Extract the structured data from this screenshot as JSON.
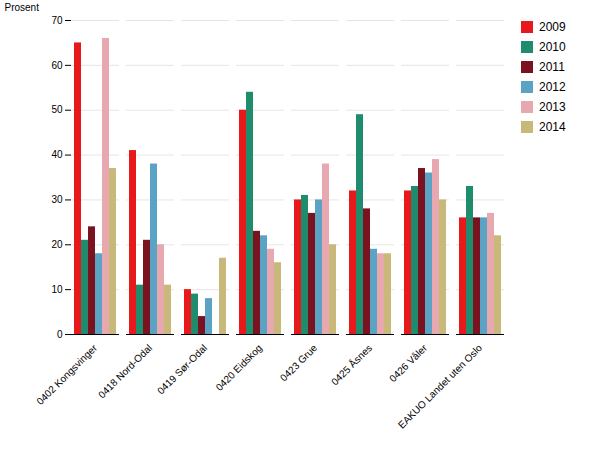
{
  "chart_data": {
    "type": "bar",
    "categories": [
      "0402 Kongsvinger",
      "0418 Nord-Odal",
      "0419 Sør-Odal",
      "0420 Eidskog",
      "0423 Grue",
      "0425 Åsnes",
      "0426 Våler",
      "EAKUO Landet uten Oslo"
    ],
    "series": [
      {
        "name": "2009",
        "color": "#E8191A",
        "values": [
          65,
          41,
          10,
          50,
          30,
          32,
          32,
          26
        ]
      },
      {
        "name": "2010",
        "color": "#1F8C6E",
        "values": [
          21,
          11,
          9,
          54,
          31,
          49,
          33,
          33
        ]
      },
      {
        "name": "2011",
        "color": "#7B1220",
        "values": [
          24,
          21,
          4,
          23,
          27,
          28,
          37,
          26
        ]
      },
      {
        "name": "2012",
        "color": "#5BA3C4",
        "values": [
          18,
          38,
          8,
          22,
          30,
          19,
          36,
          26
        ]
      },
      {
        "name": "2013",
        "color": "#E8A8B0",
        "values": [
          66,
          20,
          0,
          19,
          38,
          18,
          39,
          27
        ]
      },
      {
        "name": "2014",
        "color": "#C8B97A",
        "values": [
          37,
          11,
          17,
          16,
          20,
          18,
          30,
          22
        ]
      }
    ],
    "ylabel": "Prosent",
    "ylim": [
      0,
      70
    ],
    "yticks": [
      0,
      10,
      20,
      30,
      40,
      50,
      60,
      70
    ],
    "grid": true,
    "legend": "right"
  }
}
